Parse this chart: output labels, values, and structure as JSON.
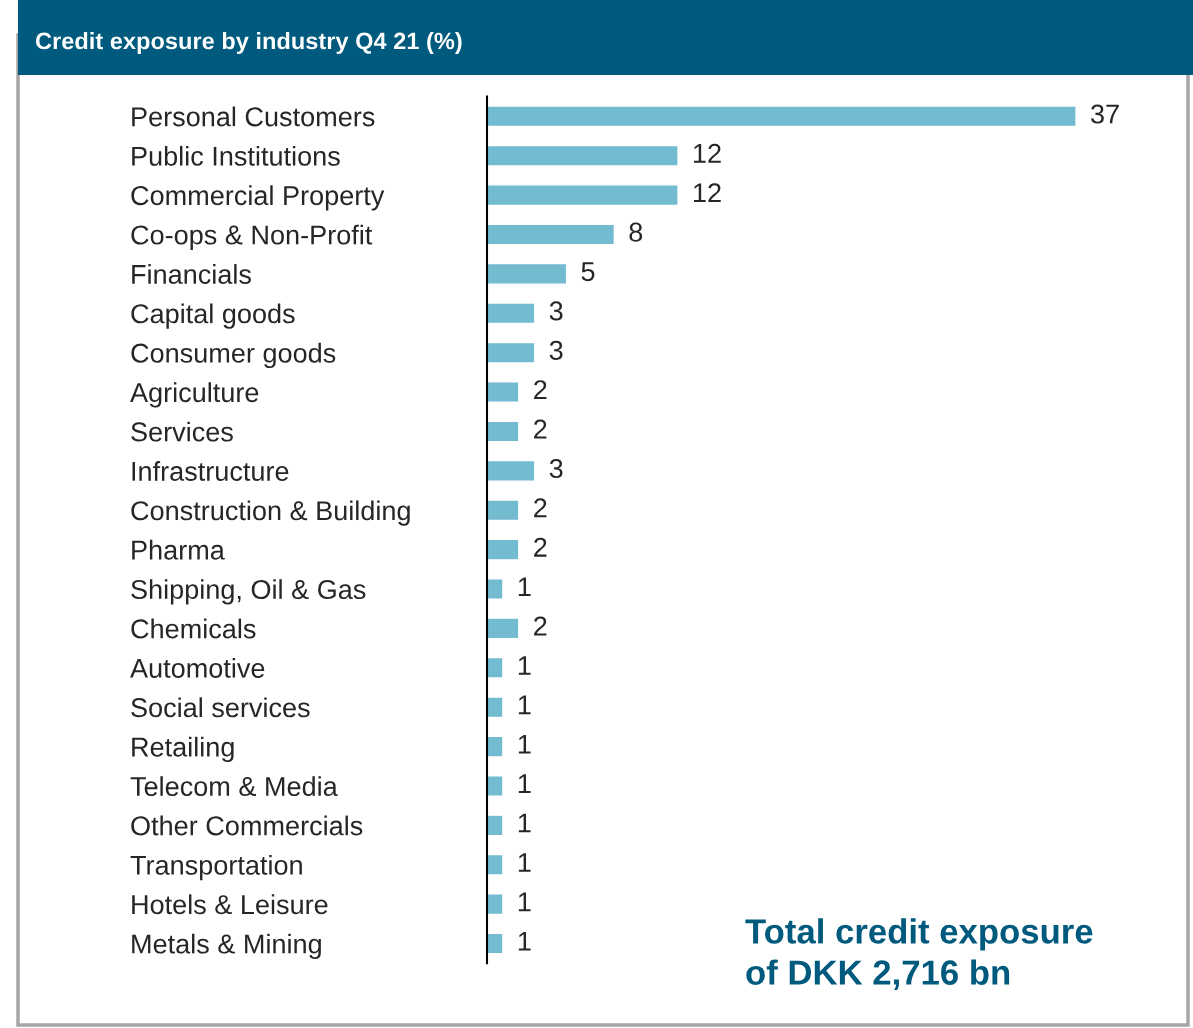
{
  "chart_data": {
    "type": "bar",
    "orientation": "horizontal",
    "title": "Credit exposure by industry Q4 21 (%)",
    "categories": [
      "Personal Customers",
      "Public Institutions",
      "Commercial Property",
      "Co-ops & Non-Profit",
      "Financials",
      "Capital goods",
      "Consumer goods",
      "Agriculture",
      "Services",
      "Infrastructure",
      "Construction & Building",
      "Pharma",
      "Shipping, Oil & Gas",
      "Chemicals",
      "Automotive",
      "Social services",
      "Retailing",
      "Telecom & Media",
      "Other Commercials",
      "Transportation",
      "Hotels & Leisure",
      "Metals & Mining"
    ],
    "values": [
      37,
      12,
      12,
      8,
      5,
      3,
      3,
      2,
      2,
      3,
      2,
      2,
      1,
      2,
      1,
      1,
      1,
      1,
      1,
      1,
      1,
      1
    ],
    "color": "#72bbd1",
    "data_labels": true,
    "grid": false,
    "legend": false,
    "annotations": [
      "Total credit exposure\nof DKK 2,716 bn"
    ]
  }
}
